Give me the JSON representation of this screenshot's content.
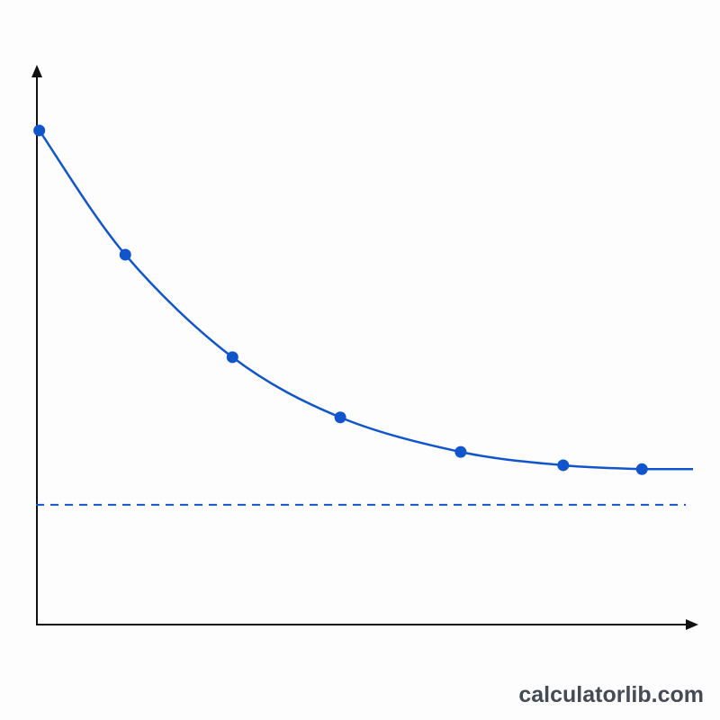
{
  "chart_data": {
    "type": "line",
    "x": [
      0.05,
      1.35,
      2.97,
      4.6,
      6.42,
      7.97,
      9.16
    ],
    "series": [
      {
        "color": "#1155cc",
        "values": [
          8.87,
          6.64,
          4.8,
          3.72,
          3.1,
          2.86,
          2.79
        ]
      }
    ],
    "asymptote": 2.15,
    "xlim": [
      0,
      10
    ],
    "ylim": [
      0,
      10
    ],
    "watermark": "calculatorlib.com"
  }
}
